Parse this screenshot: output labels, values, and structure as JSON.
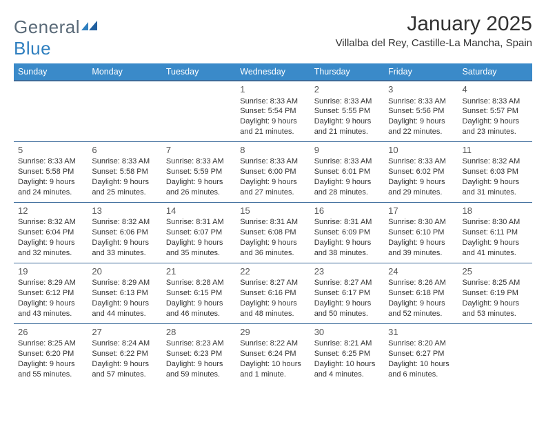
{
  "brand": {
    "name_a": "General",
    "name_b": "Blue"
  },
  "title": "January 2025",
  "location": "Villalba del Rey, Castille-La Mancha, Spain",
  "colors": {
    "header_bg": "#3a8ac9",
    "header_text": "#ffffff",
    "cell_border": "#3a6a9a",
    "brand_gray": "#5a6a78",
    "brand_blue": "#2f7fbf",
    "text": "#333333"
  },
  "day_headers": [
    "Sunday",
    "Monday",
    "Tuesday",
    "Wednesday",
    "Thursday",
    "Friday",
    "Saturday"
  ],
  "weeks": [
    [
      {
        "n": "",
        "sr": "",
        "ss": "",
        "dl": ""
      },
      {
        "n": "",
        "sr": "",
        "ss": "",
        "dl": ""
      },
      {
        "n": "",
        "sr": "",
        "ss": "",
        "dl": ""
      },
      {
        "n": "1",
        "sr": "Sunrise: 8:33 AM",
        "ss": "Sunset: 5:54 PM",
        "dl": "Daylight: 9 hours and 21 minutes."
      },
      {
        "n": "2",
        "sr": "Sunrise: 8:33 AM",
        "ss": "Sunset: 5:55 PM",
        "dl": "Daylight: 9 hours and 21 minutes."
      },
      {
        "n": "3",
        "sr": "Sunrise: 8:33 AM",
        "ss": "Sunset: 5:56 PM",
        "dl": "Daylight: 9 hours and 22 minutes."
      },
      {
        "n": "4",
        "sr": "Sunrise: 8:33 AM",
        "ss": "Sunset: 5:57 PM",
        "dl": "Daylight: 9 hours and 23 minutes."
      }
    ],
    [
      {
        "n": "5",
        "sr": "Sunrise: 8:33 AM",
        "ss": "Sunset: 5:58 PM",
        "dl": "Daylight: 9 hours and 24 minutes."
      },
      {
        "n": "6",
        "sr": "Sunrise: 8:33 AM",
        "ss": "Sunset: 5:58 PM",
        "dl": "Daylight: 9 hours and 25 minutes."
      },
      {
        "n": "7",
        "sr": "Sunrise: 8:33 AM",
        "ss": "Sunset: 5:59 PM",
        "dl": "Daylight: 9 hours and 26 minutes."
      },
      {
        "n": "8",
        "sr": "Sunrise: 8:33 AM",
        "ss": "Sunset: 6:00 PM",
        "dl": "Daylight: 9 hours and 27 minutes."
      },
      {
        "n": "9",
        "sr": "Sunrise: 8:33 AM",
        "ss": "Sunset: 6:01 PM",
        "dl": "Daylight: 9 hours and 28 minutes."
      },
      {
        "n": "10",
        "sr": "Sunrise: 8:33 AM",
        "ss": "Sunset: 6:02 PM",
        "dl": "Daylight: 9 hours and 29 minutes."
      },
      {
        "n": "11",
        "sr": "Sunrise: 8:32 AM",
        "ss": "Sunset: 6:03 PM",
        "dl": "Daylight: 9 hours and 31 minutes."
      }
    ],
    [
      {
        "n": "12",
        "sr": "Sunrise: 8:32 AM",
        "ss": "Sunset: 6:04 PM",
        "dl": "Daylight: 9 hours and 32 minutes."
      },
      {
        "n": "13",
        "sr": "Sunrise: 8:32 AM",
        "ss": "Sunset: 6:06 PM",
        "dl": "Daylight: 9 hours and 33 minutes."
      },
      {
        "n": "14",
        "sr": "Sunrise: 8:31 AM",
        "ss": "Sunset: 6:07 PM",
        "dl": "Daylight: 9 hours and 35 minutes."
      },
      {
        "n": "15",
        "sr": "Sunrise: 8:31 AM",
        "ss": "Sunset: 6:08 PM",
        "dl": "Daylight: 9 hours and 36 minutes."
      },
      {
        "n": "16",
        "sr": "Sunrise: 8:31 AM",
        "ss": "Sunset: 6:09 PM",
        "dl": "Daylight: 9 hours and 38 minutes."
      },
      {
        "n": "17",
        "sr": "Sunrise: 8:30 AM",
        "ss": "Sunset: 6:10 PM",
        "dl": "Daylight: 9 hours and 39 minutes."
      },
      {
        "n": "18",
        "sr": "Sunrise: 8:30 AM",
        "ss": "Sunset: 6:11 PM",
        "dl": "Daylight: 9 hours and 41 minutes."
      }
    ],
    [
      {
        "n": "19",
        "sr": "Sunrise: 8:29 AM",
        "ss": "Sunset: 6:12 PM",
        "dl": "Daylight: 9 hours and 43 minutes."
      },
      {
        "n": "20",
        "sr": "Sunrise: 8:29 AM",
        "ss": "Sunset: 6:13 PM",
        "dl": "Daylight: 9 hours and 44 minutes."
      },
      {
        "n": "21",
        "sr": "Sunrise: 8:28 AM",
        "ss": "Sunset: 6:15 PM",
        "dl": "Daylight: 9 hours and 46 minutes."
      },
      {
        "n": "22",
        "sr": "Sunrise: 8:27 AM",
        "ss": "Sunset: 6:16 PM",
        "dl": "Daylight: 9 hours and 48 minutes."
      },
      {
        "n": "23",
        "sr": "Sunrise: 8:27 AM",
        "ss": "Sunset: 6:17 PM",
        "dl": "Daylight: 9 hours and 50 minutes."
      },
      {
        "n": "24",
        "sr": "Sunrise: 8:26 AM",
        "ss": "Sunset: 6:18 PM",
        "dl": "Daylight: 9 hours and 52 minutes."
      },
      {
        "n": "25",
        "sr": "Sunrise: 8:25 AM",
        "ss": "Sunset: 6:19 PM",
        "dl": "Daylight: 9 hours and 53 minutes."
      }
    ],
    [
      {
        "n": "26",
        "sr": "Sunrise: 8:25 AM",
        "ss": "Sunset: 6:20 PM",
        "dl": "Daylight: 9 hours and 55 minutes."
      },
      {
        "n": "27",
        "sr": "Sunrise: 8:24 AM",
        "ss": "Sunset: 6:22 PM",
        "dl": "Daylight: 9 hours and 57 minutes."
      },
      {
        "n": "28",
        "sr": "Sunrise: 8:23 AM",
        "ss": "Sunset: 6:23 PM",
        "dl": "Daylight: 9 hours and 59 minutes."
      },
      {
        "n": "29",
        "sr": "Sunrise: 8:22 AM",
        "ss": "Sunset: 6:24 PM",
        "dl": "Daylight: 10 hours and 1 minute."
      },
      {
        "n": "30",
        "sr": "Sunrise: 8:21 AM",
        "ss": "Sunset: 6:25 PM",
        "dl": "Daylight: 10 hours and 4 minutes."
      },
      {
        "n": "31",
        "sr": "Sunrise: 8:20 AM",
        "ss": "Sunset: 6:27 PM",
        "dl": "Daylight: 10 hours and 6 minutes."
      },
      {
        "n": "",
        "sr": "",
        "ss": "",
        "dl": ""
      }
    ]
  ]
}
